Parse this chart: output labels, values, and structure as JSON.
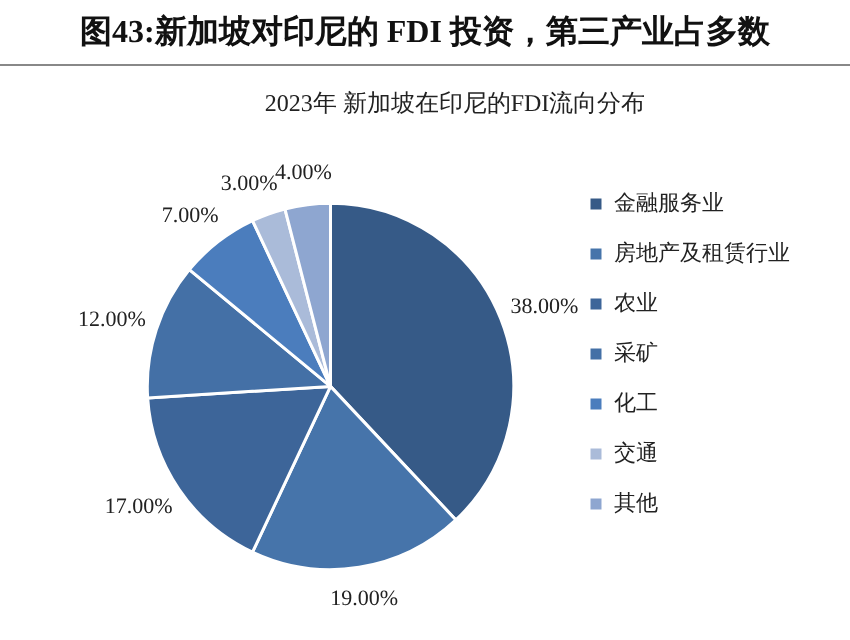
{
  "chart_data": {
    "type": "pie",
    "title": "图43:新加坡对印尼的 FDI 投资，第三产业占多数",
    "subtitle": "2023年 新加坡在印尼的FDI流向分布",
    "categories": [
      "金融服务业",
      "房地产及租赁行业",
      "农业",
      "采矿",
      "化工",
      "交通",
      "其他"
    ],
    "values": [
      38,
      19,
      17,
      12,
      7,
      3,
      4
    ],
    "value_labels": [
      "38.00%",
      "19.00%",
      "17.00%",
      "12.00%",
      "7.00%",
      "3.00%",
      "4.00%"
    ],
    "colors": [
      "#365a87",
      "#4674aa",
      "#3d6599",
      "#4470a6",
      "#4b7dbd",
      "#aabbd9",
      "#8ea6d0"
    ],
    "legend": "right"
  }
}
